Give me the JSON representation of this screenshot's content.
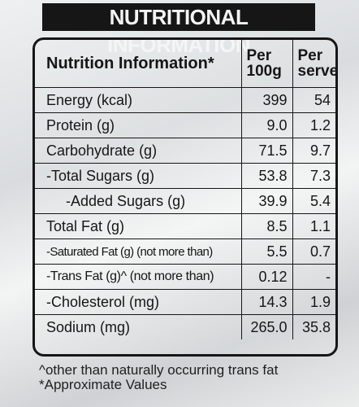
{
  "banner": "NUTRITIONAL INFORMATION",
  "header": {
    "name": "Nutrition Information*",
    "per100_line1": "Per",
    "per100_line2": "100g",
    "serve_line1": "Per",
    "serve_line2": "serve"
  },
  "rows": [
    {
      "name": "Energy (kcal)",
      "per100": "399",
      "serve": "54"
    },
    {
      "name": "Protein (g)",
      "per100": "9.0",
      "serve": "1.2"
    },
    {
      "name": "Carbohydrate (g)",
      "per100": "71.5",
      "serve": "9.7"
    },
    {
      "name": "-Total Sugars (g)",
      "per100": "53.8",
      "serve": "7.3"
    },
    {
      "name": "-Added Sugars (g)",
      "per100": "39.9",
      "serve": "5.4"
    },
    {
      "name": "Total Fat (g)",
      "per100": "8.5",
      "serve": "1.1"
    },
    {
      "name": "-Saturated Fat (g) (not more than)",
      "per100": "5.5",
      "serve": "0.7"
    },
    {
      "name": "-Trans Fat (g)^ (not more than)",
      "per100": "0.12",
      "serve": "-"
    },
    {
      "name": "-Cholesterol (mg)",
      "per100": "14.3",
      "serve": "1.9"
    },
    {
      "name": "Sodium (mg)",
      "per100": "265.0",
      "serve": "35.8"
    }
  ],
  "footnotes": {
    "line1": "^other than naturally occurring trans fat",
    "line2": "*Approximate Values"
  }
}
